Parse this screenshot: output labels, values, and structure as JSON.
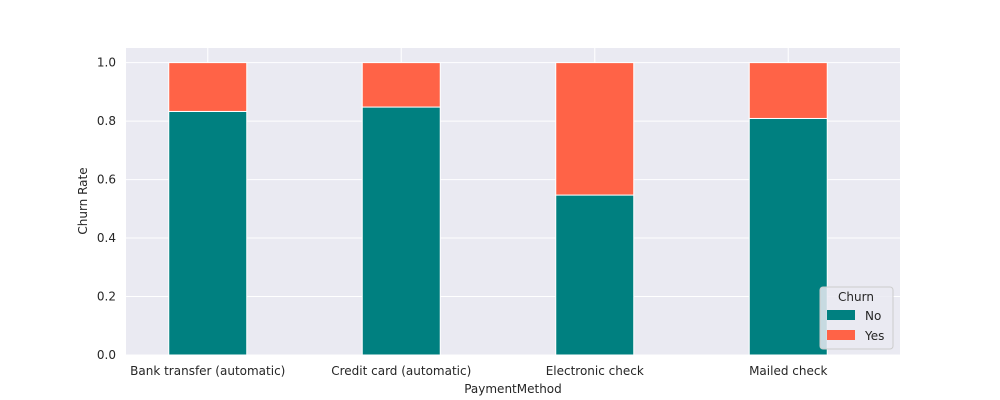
{
  "chart_data": {
    "type": "bar",
    "stacked": true,
    "categories": [
      "Bank transfer (automatic)",
      "Credit card (automatic)",
      "Electronic check",
      "Mailed check"
    ],
    "series": [
      {
        "name": "No",
        "values": [
          0.833,
          0.848,
          0.547,
          0.809
        ],
        "color": "#008080"
      },
      {
        "name": "Yes",
        "values": [
          0.167,
          0.152,
          0.453,
          0.191
        ],
        "color": "#ff6347"
      }
    ],
    "xlabel": "PaymentMethod",
    "ylabel": "Churn Rate",
    "ylim": [
      0,
      1.05
    ],
    "yticks": [
      "0.0",
      "0.2",
      "0.4",
      "0.6",
      "0.8",
      "1.0"
    ],
    "grid": true,
    "background": "#eaeaf2",
    "legend": {
      "title": "Churn",
      "placement": "bottom-right"
    }
  }
}
